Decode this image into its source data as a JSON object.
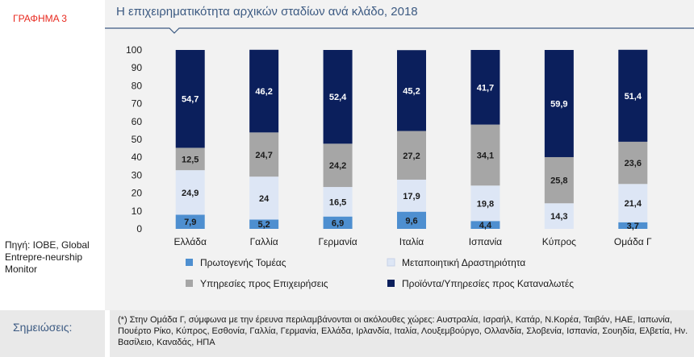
{
  "figure_label": "ΓΡΑΦΗΜΑ 3",
  "source": "Πηγή: ΙΟΒΕ, Global Entrepre-neurship Monitor",
  "notes": {
    "label": "Σημειώσεις:",
    "text": "(*) Στην Ομάδα Γ, σύμφωνα με την έρευνα περιλαμβάνονται οι ακόλουθες χώρες: Αυστραλία, Ισραήλ, Κατάρ, Ν.Κορέα, Ταιβάν, ΗΑΕ, Ιαπωνία, Πουέρτο Ρίκο, Κύπρος, Εσθονία, Γαλλία, Γερμανία, Ελλάδα, Ιρλανδία, Ιταλία, Λουξεμβούργο, Ολλανδία, Σλοβενία, Ισπανία, Σουηδία, Ελβετία, Ην. Βασίλειο, Καναδάς, ΗΠΑ"
  },
  "colors": {
    "primary": "#4e8fd0",
    "manufacturing": "#dde6f5",
    "business": "#a6a6a6",
    "consumer": "#0b1f5c",
    "title": "#3c5a82",
    "label_red": "#e8281e"
  },
  "chart_data": {
    "type": "bar",
    "stacked": true,
    "title": "Η επιχειρηματικότητα αρχικών σταδίων ανά κλάδο, 2018",
    "categories": [
      "Ελλάδα",
      "Γαλλία",
      "Γερμανία",
      "Ιταλία",
      "Ισπανία",
      "Κύπρος",
      "Ομάδα Γ"
    ],
    "ylim": [
      0,
      100
    ],
    "yticks": [
      0,
      10,
      20,
      30,
      40,
      50,
      60,
      70,
      80,
      90,
      100
    ],
    "grid": false,
    "legend_position": "bottom",
    "series": [
      {
        "name": "Πρωτογενής Τομέας",
        "values": [
          7.9,
          5.2,
          6.9,
          9.6,
          4.4,
          0,
          3.7
        ],
        "labels": [
          "7,9",
          "5,2",
          "6,9",
          "9,6",
          "4,4",
          "",
          "3,7"
        ]
      },
      {
        "name": "Μεταποιητική Δραστηριότητα",
        "values": [
          24.9,
          24,
          16.5,
          17.9,
          19.8,
          14.3,
          21.4
        ],
        "labels": [
          "24,9",
          "24",
          "16,5",
          "17,9",
          "19,8",
          "14,3",
          "21,4"
        ]
      },
      {
        "name": "Υπηρεσίες προς Επιχειρήσεις",
        "values": [
          12.5,
          24.7,
          24.2,
          27.2,
          34.1,
          25.8,
          23.6
        ],
        "labels": [
          "12,5",
          "24,7",
          "24,2",
          "27,2",
          "34,1",
          "25,8",
          "23,6"
        ]
      },
      {
        "name": "Προϊόντα/Υπηρεσίες προς Καταναλωτές",
        "values": [
          54.7,
          46.2,
          52.4,
          45.2,
          41.7,
          59.9,
          51.4
        ],
        "labels": [
          "54,7",
          "46,2",
          "52,4",
          "45,2",
          "41,7",
          "59,9",
          "51,4"
        ]
      }
    ]
  }
}
